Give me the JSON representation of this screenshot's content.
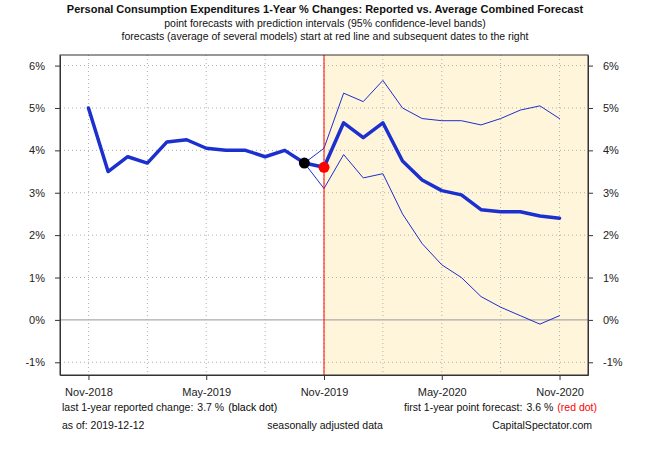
{
  "chart_data": {
    "type": "line",
    "title": "Personal Consumption Expenditures 1-Year % Changes: Reported vs. Average Combined Forecast",
    "subtitle": [
      "point forecasts with prediction intervals (95% confidence-level bands)",
      "forecasts (average of several models) start at red line and subsequent dates to the right"
    ],
    "categories": [
      "Nov-2018",
      null,
      null,
      null,
      null,
      null,
      "May-2019",
      null,
      null,
      null,
      null,
      null,
      "Nov-2019",
      null,
      null,
      null,
      null,
      null,
      "May-2020",
      null,
      null,
      null,
      null,
      null,
      "Nov-2020"
    ],
    "series": [
      {
        "type": "line",
        "color": "#1c2fcf",
        "values": [
          5.0,
          3.5,
          3.85,
          3.7,
          4.2,
          4.25,
          4.05,
          4.0,
          4.0,
          3.85,
          4.0,
          3.7,
          null,
          null,
          null,
          null,
          null,
          null,
          null,
          null,
          null,
          null,
          null,
          null,
          null
        ]
      },
      {
        "type": "line",
        "color": "#1c2fcf",
        "values": [
          null,
          null,
          null,
          null,
          null,
          null,
          null,
          null,
          null,
          null,
          null,
          null,
          3.6,
          4.65,
          4.3,
          4.65,
          3.75,
          3.3,
          3.05,
          2.95,
          2.6,
          2.55,
          2.55,
          2.45,
          2.4
        ]
      },
      {
        "type": "band",
        "color": "#1c2fcf",
        "upper": [
          null,
          null,
          null,
          null,
          null,
          null,
          null,
          null,
          null,
          null,
          null,
          3.7,
          4.05,
          5.35,
          5.15,
          5.65,
          5.0,
          4.75,
          4.7,
          4.7,
          4.6,
          4.75,
          4.95,
          5.05,
          4.75
        ],
        "lower": [
          null,
          null,
          null,
          null,
          null,
          null,
          null,
          null,
          null,
          null,
          null,
          3.7,
          3.1,
          3.9,
          3.35,
          3.45,
          2.5,
          1.8,
          1.3,
          1.0,
          0.55,
          0.3,
          0.1,
          -0.1,
          0.1
        ]
      }
    ],
    "ylim": [
      -1.3,
      6.25
    ],
    "yticks": [
      {
        "value": -1,
        "label": "-1%"
      },
      {
        "value": 0,
        "label": "0%"
      },
      {
        "value": 1,
        "label": "1%"
      },
      {
        "value": 2,
        "label": "2%"
      },
      {
        "value": 3,
        "label": "3%"
      },
      {
        "value": 4,
        "label": "4%"
      },
      {
        "value": 5,
        "label": "5%"
      },
      {
        "value": 6,
        "label": "6%"
      }
    ],
    "grid": true,
    "annotations": [
      {
        "text": "last 1-year reported change:",
        "value": 3.7,
        "value_label": "3.7 %",
        "note": "(black dot)",
        "color": "#000000"
      },
      {
        "text": "first 1-year point forecast:",
        "value": 3.6,
        "value_label": "3.6 %",
        "note": "(red dot)",
        "color": "#ff0000"
      }
    ],
    "footer": [
      "as of: 2019-12-12",
      "seasonally adjusted data",
      "CapitalSpectator.com"
    ]
  }
}
